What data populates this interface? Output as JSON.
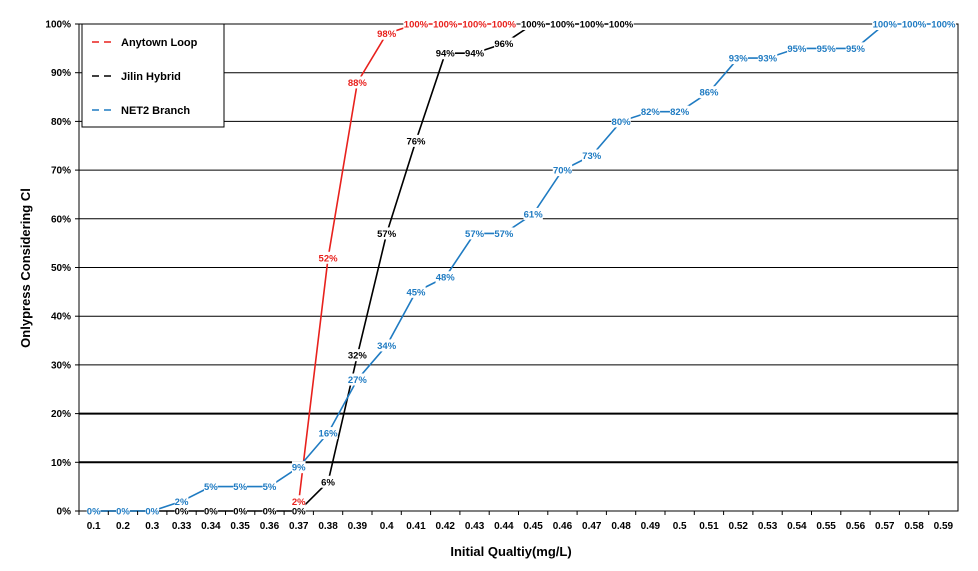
{
  "chart_data": {
    "type": "line",
    "title": "",
    "xlabel": "Initial Qualtiy(mg/L)",
    "ylabel": "Onlypress Considering Cl",
    "categories": [
      "0.1",
      "0.2",
      "0.3",
      "0.33",
      "0.34",
      "0.35",
      "0.36",
      "0.37",
      "0.38",
      "0.39",
      "0.4",
      "0.41",
      "0.42",
      "0.43",
      "0.44",
      "0.45",
      "0.46",
      "0.47",
      "0.48",
      "0.49",
      "0.5",
      "0.51",
      "0.52",
      "0.53",
      "0.54",
      "0.55",
      "0.56",
      "0.57",
      "0.58",
      "0.59"
    ],
    "y_ticks": [
      "0%",
      "10%",
      "20%",
      "30%",
      "40%",
      "50%",
      "60%",
      "70%",
      "80%",
      "90%",
      "100%"
    ],
    "ylim": [
      0,
      100
    ],
    "grid": true,
    "legend_position": "top-left",
    "series": [
      {
        "name": "Anytown Loop",
        "color": "#e8211d",
        "points": [
          {
            "x": "0.37",
            "y": 2,
            "label": "2%"
          },
          {
            "x": "0.38",
            "y": 52,
            "label": "52%"
          },
          {
            "x": "0.39",
            "y": 88,
            "label": "88%"
          },
          {
            "x": "0.4",
            "y": 98,
            "label": "98%"
          },
          {
            "x": "0.41",
            "y": 100,
            "label": "100%"
          },
          {
            "x": "0.42",
            "y": 100,
            "label": "100%"
          },
          {
            "x": "0.43",
            "y": 100,
            "label": "100%"
          },
          {
            "x": "0.44",
            "y": 100,
            "label": "100%"
          }
        ]
      },
      {
        "name": "Jilin Hybrid",
        "color": "#000000",
        "points": [
          {
            "x": "0.1",
            "y": 0,
            "label": "0%"
          },
          {
            "x": "0.2",
            "y": 0,
            "label": "0%"
          },
          {
            "x": "0.3",
            "y": 0,
            "label": "0%"
          },
          {
            "x": "0.33",
            "y": 0,
            "label": "0%"
          },
          {
            "x": "0.34",
            "y": 0,
            "label": "0%"
          },
          {
            "x": "0.35",
            "y": 0,
            "label": "0%"
          },
          {
            "x": "0.36",
            "y": 0,
            "label": "0%"
          },
          {
            "x": "0.37",
            "y": 0,
            "label": "0%"
          },
          {
            "x": "0.38",
            "y": 6,
            "label": "6%"
          },
          {
            "x": "0.39",
            "y": 32,
            "label": "32%"
          },
          {
            "x": "0.4",
            "y": 57,
            "label": "57%"
          },
          {
            "x": "0.41",
            "y": 76,
            "label": "76%"
          },
          {
            "x": "0.42",
            "y": 94,
            "label": "94%"
          },
          {
            "x": "0.43",
            "y": 94,
            "label": "94%"
          },
          {
            "x": "0.44",
            "y": 96,
            "label": "96%"
          },
          {
            "x": "0.45",
            "y": 100,
            "label": "100%"
          },
          {
            "x": "0.46",
            "y": 100,
            "label": "100%"
          },
          {
            "x": "0.47",
            "y": 100,
            "label": "100%"
          },
          {
            "x": "0.48",
            "y": 100,
            "label": "100%"
          }
        ]
      },
      {
        "name": "NET2 Branch",
        "color": "#1f7bc2",
        "points": [
          {
            "x": "0.1",
            "y": 0,
            "label": "0%"
          },
          {
            "x": "0.2",
            "y": 0,
            "label": "0%"
          },
          {
            "x": "0.3",
            "y": 0,
            "label": "0%"
          },
          {
            "x": "0.33",
            "y": 2,
            "label": "2%"
          },
          {
            "x": "0.34",
            "y": 5,
            "label": "5%"
          },
          {
            "x": "0.35",
            "y": 5,
            "label": "5%"
          },
          {
            "x": "0.36",
            "y": 5,
            "label": "5%"
          },
          {
            "x": "0.37",
            "y": 9,
            "label": "9%"
          },
          {
            "x": "0.38",
            "y": 16,
            "label": "16%"
          },
          {
            "x": "0.39",
            "y": 27,
            "label": "27%"
          },
          {
            "x": "0.4",
            "y": 34,
            "label": "34%"
          },
          {
            "x": "0.41",
            "y": 45,
            "label": "45%"
          },
          {
            "x": "0.42",
            "y": 48,
            "label": "48%"
          },
          {
            "x": "0.43",
            "y": 57,
            "label": "57%"
          },
          {
            "x": "0.44",
            "y": 57,
            "label": "57%"
          },
          {
            "x": "0.45",
            "y": 61,
            "label": "61%"
          },
          {
            "x": "0.46",
            "y": 70,
            "label": "70%"
          },
          {
            "x": "0.47",
            "y": 73,
            "label": "73%"
          },
          {
            "x": "0.48",
            "y": 80,
            "label": "80%"
          },
          {
            "x": "0.49",
            "y": 82,
            "label": "82%"
          },
          {
            "x": "0.5",
            "y": 82,
            "label": "82%"
          },
          {
            "x": "0.51",
            "y": 86,
            "label": "86%"
          },
          {
            "x": "0.52",
            "y": 93,
            "label": "93%"
          },
          {
            "x": "0.53",
            "y": 93,
            "label": "93%"
          },
          {
            "x": "0.54",
            "y": 95,
            "label": "95%"
          },
          {
            "x": "0.55",
            "y": 95,
            "label": "95%"
          },
          {
            "x": "0.56",
            "y": 95,
            "label": "95%"
          },
          {
            "x": "0.57",
            "y": 100,
            "label": "100%"
          },
          {
            "x": "0.58",
            "y": 100,
            "label": "100%"
          },
          {
            "x": "0.59",
            "y": 100,
            "label": "100%"
          }
        ]
      }
    ]
  }
}
